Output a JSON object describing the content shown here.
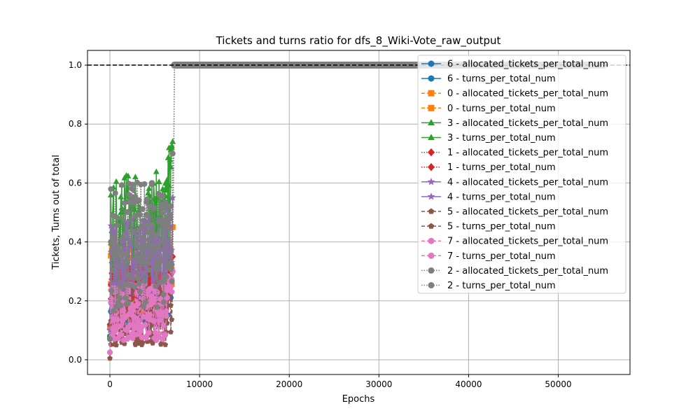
{
  "chart_data": {
    "type": "line",
    "title": "Tickets and turns ratio for dfs_8_Wiki-Vote_raw_output",
    "xlabel": "Epochs",
    "ylabel": "Tickets, Turns out of total",
    "xlim": [
      -2500,
      58000
    ],
    "ylim": [
      -0.05,
      1.05
    ],
    "xticks": [
      "0",
      "10000",
      "20000",
      "30000",
      "40000",
      "50000"
    ],
    "xtick_values": [
      0,
      10000,
      20000,
      30000,
      40000,
      50000
    ],
    "yticks": [
      "0.0",
      "0.2",
      "0.4",
      "0.6",
      "0.8",
      "1.0"
    ],
    "ytick_values": [
      0.0,
      0.2,
      0.4,
      0.6,
      0.8,
      1.0
    ],
    "grid": true,
    "legend_position": "upper-right",
    "reference_line": {
      "y": 1.0,
      "style": "dashed",
      "color": "#000000"
    },
    "series": [
      {
        "name": "6 - allocated_tickets_per_total_num",
        "color": "#1f77b4",
        "marker": "circle",
        "linestyle": "solid",
        "range": [
          0.08,
          0.3
        ]
      },
      {
        "name": "6 - turns_per_total_num",
        "color": "#1f77b4",
        "marker": "circle",
        "linestyle": "solid",
        "range": [
          0.08,
          0.3
        ]
      },
      {
        "name": "0 - allocated_tickets_per_total_num",
        "color": "#ff7f0e",
        "marker": "square",
        "linestyle": "dashed",
        "range": [
          0.11,
          0.45
        ]
      },
      {
        "name": "0 - turns_per_total_num",
        "color": "#ff7f0e",
        "marker": "square",
        "linestyle": "dashed",
        "range": [
          0.11,
          0.45
        ]
      },
      {
        "name": "3 - allocated_tickets_per_total_num",
        "color": "#2ca02c",
        "marker": "triangle",
        "linestyle": "solid",
        "range": [
          0.08,
          0.74
        ]
      },
      {
        "name": "3 - turns_per_total_num",
        "color": "#2ca02c",
        "marker": "triangle",
        "linestyle": "solid",
        "range": [
          0.08,
          0.74
        ]
      },
      {
        "name": "1 - allocated_tickets_per_total_num",
        "color": "#d62728",
        "marker": "diamond",
        "linestyle": "dotted",
        "range": [
          0.12,
          0.35
        ]
      },
      {
        "name": "1 - turns_per_total_num",
        "color": "#d62728",
        "marker": "diamond",
        "linestyle": "dotted",
        "range": [
          0.12,
          0.35
        ]
      },
      {
        "name": "4 - allocated_tickets_per_total_num",
        "color": "#9467bd",
        "marker": "star",
        "linestyle": "solid",
        "range": [
          0.1,
          0.55
        ]
      },
      {
        "name": "4 - turns_per_total_num",
        "color": "#9467bd",
        "marker": "star",
        "linestyle": "solid",
        "range": [
          0.1,
          0.55
        ]
      },
      {
        "name": "5 - allocated_tickets_per_total_num",
        "color": "#8c564b",
        "marker": "pentagon",
        "linestyle": "dashed",
        "range": [
          0.005,
          0.3
        ]
      },
      {
        "name": "5 - turns_per_total_num",
        "color": "#8c564b",
        "marker": "pentagon",
        "linestyle": "dashed",
        "range": [
          0.005,
          0.3
        ]
      },
      {
        "name": "7 - allocated_tickets_per_total_num",
        "color": "#e377c2",
        "marker": "hexagon",
        "linestyle": "dashed",
        "range": [
          0.025,
          0.3
        ]
      },
      {
        "name": "7 - turns_per_total_num",
        "color": "#e377c2",
        "marker": "hexagon",
        "linestyle": "dashed",
        "range": [
          0.025,
          0.3
        ]
      },
      {
        "name": "2 - allocated_tickets_per_total_num",
        "color": "#7f7f7f",
        "marker": "octagon",
        "linestyle": "dotted",
        "range": [
          0.07,
          0.7
        ],
        "final_value": 1.0,
        "final_x_range": [
          7200,
          55000
        ]
      },
      {
        "name": "2 - turns_per_total_num",
        "color": "#7f7f7f",
        "marker": "octagon",
        "linestyle": "dotted",
        "range": [
          0.07,
          0.7
        ],
        "final_value": 1.0,
        "final_x_range": [
          7200,
          55000
        ]
      }
    ]
  }
}
